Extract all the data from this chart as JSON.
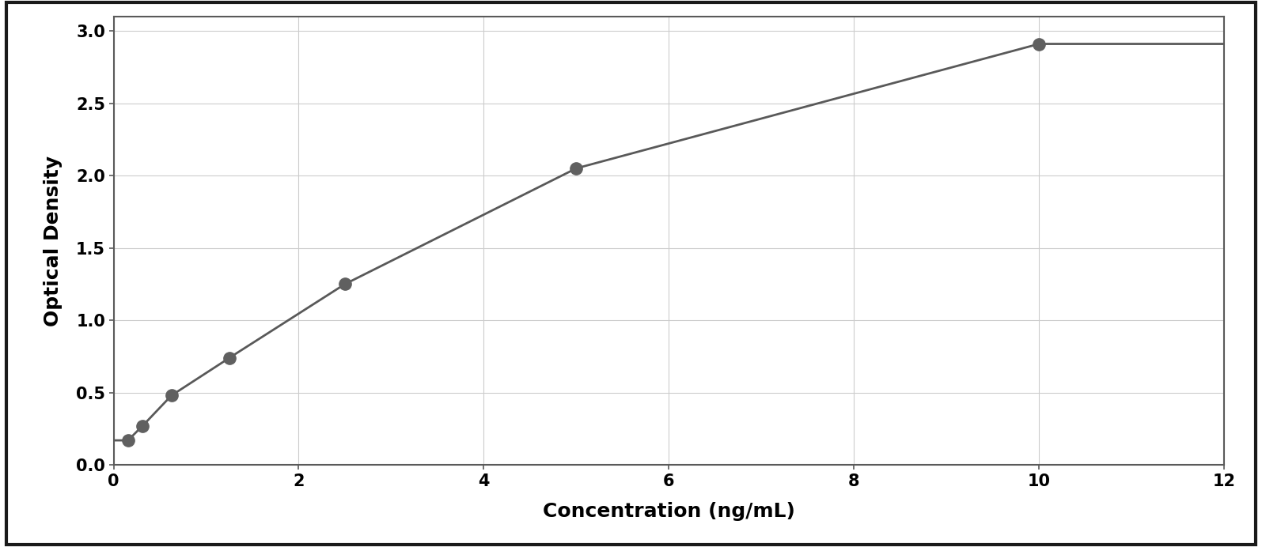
{
  "x_data": [
    0.156,
    0.313,
    0.625,
    1.25,
    2.5,
    5.0,
    10.0
  ],
  "y_data": [
    0.17,
    0.27,
    0.48,
    0.74,
    1.25,
    2.05,
    2.91
  ],
  "point_color": "#606060",
  "line_color": "#595959",
  "xlabel": "Concentration (ng/mL)",
  "ylabel": "Optical Density",
  "xlim": [
    0,
    12
  ],
  "ylim": [
    0,
    3.1
  ],
  "xticks": [
    0,
    2,
    4,
    6,
    8,
    10,
    12
  ],
  "yticks": [
    0,
    0.5,
    1.0,
    1.5,
    2.0,
    2.5,
    3.0
  ],
  "xlabel_fontsize": 18,
  "ylabel_fontsize": 18,
  "tick_fontsize": 15,
  "marker_size": 11,
  "line_width": 2.0,
  "background_color": "#ffffff",
  "spine_color": "#5a5a5a",
  "grid_color": "#cccccc",
  "figure_bg": "#ffffff",
  "outer_border_color": "#1a1a1a"
}
